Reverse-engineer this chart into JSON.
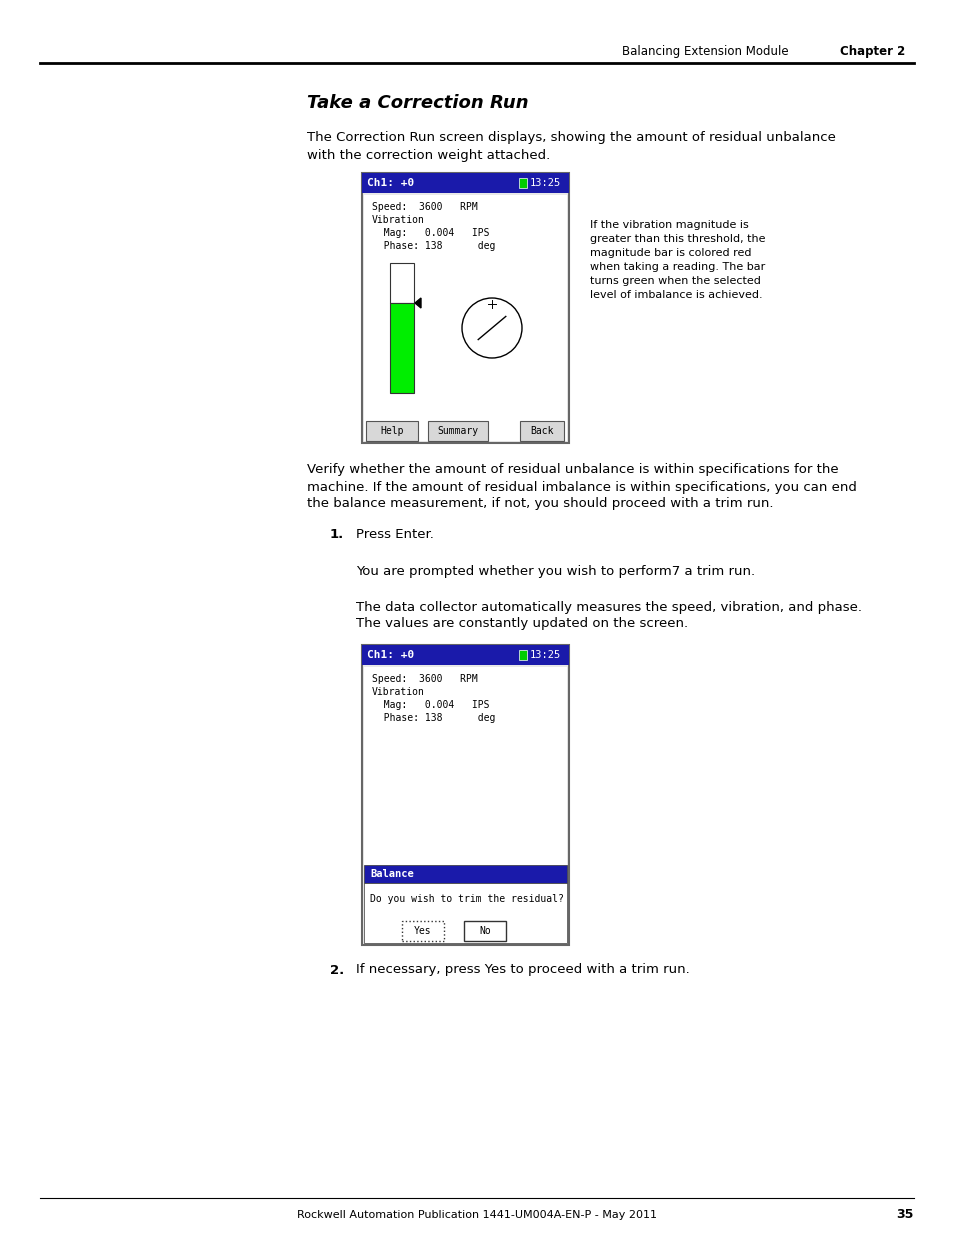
{
  "page_bg": "#ffffff",
  "header_text_left": "Balancing Extension Module",
  "header_text_right": "Chapter 2",
  "title": "Take a Correction Run",
  "para1_line1": "The Correction Run screen displays, showing the amount of residual unbalance",
  "para1_line2": "with the correction weight attached.",
  "screen1": {
    "title": "Ch1: +0",
    "title_bg": "#1a1aaa",
    "battery": "13:25",
    "lines": [
      "Speed:  3600   RPM",
      "Vibration",
      "  Mag:   0.004   IPS",
      "  Phase: 138      deg"
    ],
    "buttons": [
      "Help",
      "Summary",
      "Back"
    ]
  },
  "annotation_lines": [
    "If the vibration magnitude is",
    "greater than this threshold, the",
    "magnitude bar is colored red",
    "when taking a reading. The bar",
    "turns green when the selected",
    "level of imbalance is achieved."
  ],
  "para2_line1": "Verify whether the amount of residual unbalance is within specifications for the",
  "para2_line2": "machine. If the amount of residual imbalance is within specifications, you can end",
  "para2_line3": "the balance measurement, if not, you should proceed with a trim run.",
  "step1_label": "1.",
  "step1_text": "Press Enter.",
  "para3": "You are prompted whether you wish to perform7 a trim run.",
  "para4_line1": "The data collector automatically measures the speed, vibration, and phase.",
  "para4_line2": "The values are constantly updated on the screen.",
  "screen2": {
    "title": "Ch1: +0",
    "title_bg": "#1a1aaa",
    "battery": "13:25",
    "lines": [
      "Speed:  3600   RPM",
      "Vibration",
      "  Mag:   0.004   IPS",
      "  Phase: 138      deg"
    ],
    "dialog_title": "Balance",
    "dialog_text": "Do you wish to trim the residual?",
    "buttons": [
      "Yes",
      "No"
    ]
  },
  "step2_label": "2.",
  "step2_text": "If necessary, press Yes to proceed with a trim run.",
  "footer_text": "Rockwell Automation Publication 1441-UM004A-EN-P - May 2011",
  "footer_page": "35",
  "dark_blue": "#1a1aaa",
  "green": "#00ee00",
  "white": "#ffffff",
  "black": "#000000"
}
